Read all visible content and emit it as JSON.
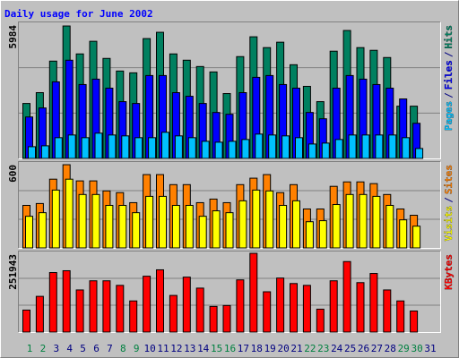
{
  "chart_data": [
    {
      "type": "bar",
      "title": "Daily usage for June 2002",
      "ylim": [
        0,
        5984
      ],
      "yticks": [
        5984
      ],
      "legend_separator": "/",
      "series": [
        {
          "name": "Hits",
          "color": "#008060",
          "values": [
            2417,
            2893,
            4280,
            5825,
            4597,
            5152,
            4399,
            3844,
            3765,
            5271,
            5548,
            4597,
            4320,
            4042,
            3804,
            2853,
            4478,
            5350,
            4874,
            5112,
            4121,
            3170,
            2497,
            4716,
            5627,
            4874,
            4755,
            4438,
            2298,
            2298,
            null
          ]
        },
        {
          "name": "Files",
          "color": "#0000ff",
          "values": [
            1823,
            2219,
            3369,
            4320,
            3250,
            3487,
            3091,
            2497,
            2417,
            3646,
            3646,
            2893,
            2734,
            2417,
            2021,
            1942,
            2893,
            3567,
            3646,
            3250,
            3091,
            2021,
            1744,
            3091,
            3646,
            3487,
            3250,
            3091,
            2616,
            1546,
            null
          ]
        },
        {
          "name": "Pages",
          "color": "#00c0ff",
          "values": [
            515,
            555,
            912,
            1030,
            912,
            1110,
            1030,
            991,
            912,
            912,
            1149,
            991,
            912,
            753,
            713,
            753,
            832,
            1070,
            1030,
            991,
            912,
            634,
            674,
            832,
            1030,
            1030,
            1030,
            1030,
            912,
            436,
            null
          ]
        }
      ]
    },
    {
      "type": "bar",
      "ylim": [
        0,
        600
      ],
      "yticks": [
        600
      ],
      "legend_separator": "/",
      "series": [
        {
          "name": "Sites",
          "color": "#ff8000",
          "values": [
            297,
            310,
            480,
            581,
            468,
            468,
            398,
            386,
            316,
            512,
            512,
            442,
            442,
            316,
            341,
            316,
            442,
            487,
            512,
            386,
            442,
            272,
            272,
            430,
            461,
            461,
            449,
            373,
            272,
            228,
            null
          ]
        },
        {
          "name": "Visits",
          "color": "#ffff00",
          "values": [
            221,
            246,
            404,
            480,
            373,
            373,
            297,
            297,
            246,
            360,
            360,
            297,
            297,
            221,
            259,
            246,
            329,
            404,
            398,
            297,
            329,
            183,
            190,
            303,
            373,
            373,
            360,
            297,
            196,
            152,
            null
          ]
        }
      ]
    },
    {
      "type": "bar",
      "ylim": [
        0,
        251943
      ],
      "yticks": [
        251943
      ],
      "categories": [
        "1",
        "2",
        "3",
        "4",
        "5",
        "6",
        "7",
        "8",
        "9",
        "10",
        "11",
        "12",
        "13",
        "14",
        "15",
        "16",
        "17",
        "18",
        "19",
        "20",
        "21",
        "22",
        "23",
        "24",
        "25",
        "26",
        "27",
        "28",
        "29",
        "30",
        "31"
      ],
      "category_colors": [
        "#008040",
        "#008040",
        "#000080",
        "#000080",
        "#000080",
        "#000080",
        "#000080",
        "#008040",
        "#008040",
        "#000080",
        "#000080",
        "#000080",
        "#000080",
        "#000080",
        "#008040",
        "#008040",
        "#000080",
        "#000080",
        "#000080",
        "#000080",
        "#000080",
        "#008040",
        "#008040",
        "#000080",
        "#000080",
        "#000080",
        "#000080",
        "#000080",
        "#008040",
        "#008040",
        "#000080"
      ],
      "series": [
        {
          "name": "KBytes",
          "color": "#ff0000",
          "values": [
            68712,
            111657,
            186095,
            191821,
            131698,
            160328,
            160328,
            146013,
            97342,
            174643,
            194684,
            114520,
            171780,
            137424,
            80164,
            83027,
            163191,
            246218,
            125972,
            168917,
            151739,
            146013,
            71575,
            160328,
            220451,
            154602,
            183232,
            131698,
            97342,
            65849,
            null
          ]
        }
      ]
    }
  ]
}
